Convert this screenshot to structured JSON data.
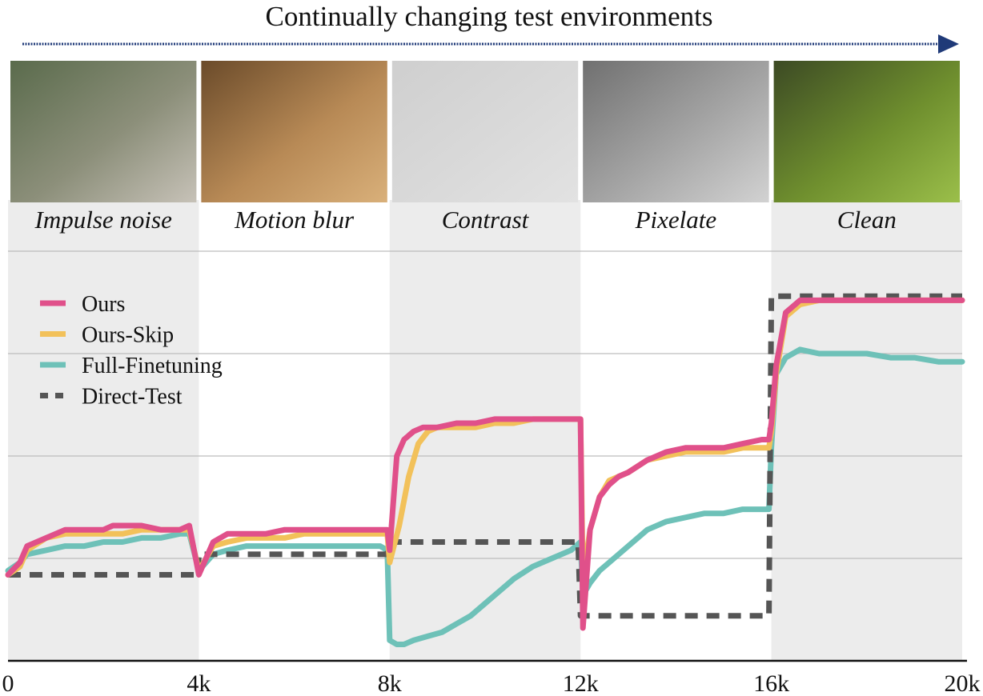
{
  "header": {
    "title": "Continually changing test environments"
  },
  "colors": {
    "ours": "#e0508a",
    "ours_skip": "#f2c15a",
    "full_finetuning": "#6ec1b8",
    "direct_test": "#555555",
    "shaded_band": "#ececec",
    "arrow": "#1f3a78"
  },
  "chart_data": {
    "type": "line",
    "title": "Continually changing test environments",
    "x_tick_labels": [
      "0",
      "4k",
      "8k",
      "12k",
      "16k",
      "20k"
    ],
    "xlim": [
      0,
      20000
    ],
    "ylim": [
      0,
      100
    ],
    "y_grid": [
      25,
      50,
      75,
      100
    ],
    "grid": true,
    "legend_position": "top-left",
    "domains": [
      {
        "label": "Impulse noise",
        "start": 0,
        "end": 4000,
        "shaded": true,
        "icon": "impulse-noise-thumbnail"
      },
      {
        "label": "Motion blur",
        "start": 4000,
        "end": 8000,
        "shaded": false,
        "icon": "motion-blur-thumbnail"
      },
      {
        "label": "Contrast",
        "start": 8000,
        "end": 12000,
        "shaded": true,
        "icon": "contrast-thumbnail"
      },
      {
        "label": "Pixelate",
        "start": 12000,
        "end": 16000,
        "shaded": false,
        "icon": "pixelate-thumbnail"
      },
      {
        "label": "Clean",
        "start": 16000,
        "end": 20000,
        "shaded": true,
        "icon": "clean-thumbnail"
      }
    ],
    "series": [
      {
        "name": "Ours",
        "key": "ours",
        "dashed": false,
        "x": [
          0,
          250,
          400,
          800,
          1200,
          1600,
          2000,
          2200,
          2400,
          2800,
          3200,
          3600,
          3800,
          4000,
          4300,
          4600,
          5000,
          5400,
          5800,
          6200,
          6600,
          7000,
          7400,
          7800,
          7950,
          8000,
          8150,
          8300,
          8500,
          8700,
          9000,
          9400,
          9800,
          10200,
          10600,
          11000,
          11300,
          11600,
          11800,
          12000,
          12050,
          12200,
          12400,
          12600,
          12800,
          13000,
          13400,
          13800,
          14200,
          14600,
          15000,
          15400,
          15800,
          15950,
          16000,
          16100,
          16300,
          16600,
          17000,
          17500,
          18000,
          18500,
          19000,
          19500,
          20000
        ],
        "y": [
          21,
          24,
          28,
          30,
          32,
          32,
          32,
          33,
          33,
          33,
          32,
          32,
          33,
          21,
          29,
          31,
          31,
          31,
          32,
          32,
          32,
          32,
          32,
          32,
          32,
          27,
          50,
          54,
          56,
          57,
          57,
          58,
          58,
          59,
          59,
          59,
          59,
          59,
          59,
          59,
          8,
          32,
          40,
          43,
          45,
          46,
          49,
          51,
          52,
          52,
          52,
          53,
          54,
          54,
          58,
          72,
          85,
          88,
          88,
          88,
          88,
          88,
          88,
          88,
          88
        ]
      },
      {
        "name": "Ours-Skip",
        "key": "ours_skip",
        "dashed": false,
        "x": [
          0,
          250,
          400,
          800,
          1200,
          1600,
          2000,
          2400,
          2800,
          3200,
          3600,
          3800,
          4000,
          4300,
          4600,
          5000,
          5400,
          5800,
          6200,
          6600,
          7000,
          7400,
          7800,
          7950,
          8000,
          8200,
          8400,
          8600,
          8800,
          9000,
          9400,
          9800,
          10200,
          10600,
          11000,
          11400,
          11800,
          12000,
          12050,
          12200,
          12400,
          12600,
          12800,
          13000,
          13400,
          13800,
          14200,
          14600,
          15000,
          15400,
          15800,
          15950,
          16000,
          16100,
          16300,
          16600,
          17000,
          17500,
          18000,
          18500,
          19000,
          19500,
          20000
        ],
        "y": [
          21,
          23,
          27,
          30,
          31,
          31,
          31,
          31,
          32,
          32,
          32,
          32,
          22,
          28,
          29,
          30,
          30,
          30,
          31,
          31,
          31,
          31,
          31,
          31,
          24,
          33,
          45,
          53,
          56,
          57,
          57,
          57,
          58,
          58,
          59,
          59,
          59,
          59,
          20,
          32,
          40,
          44,
          45,
          46,
          49,
          50,
          51,
          51,
          51,
          52,
          52,
          52,
          56,
          70,
          84,
          87,
          88,
          88,
          88,
          88,
          88,
          88,
          88
        ]
      },
      {
        "name": "Full-Finetuning",
        "key": "full_finetuning",
        "dashed": false,
        "x": [
          0,
          250,
          400,
          800,
          1200,
          1600,
          2000,
          2400,
          2800,
          3200,
          3600,
          3800,
          4000,
          4300,
          4600,
          5000,
          5400,
          5800,
          6200,
          6600,
          7000,
          7400,
          7800,
          7950,
          8000,
          8150,
          8300,
          8500,
          8800,
          9100,
          9400,
          9700,
          10000,
          10300,
          10600,
          11000,
          11400,
          11800,
          12000,
          12050,
          12200,
          12400,
          12600,
          12800,
          13000,
          13400,
          13800,
          14200,
          14600,
          15000,
          15400,
          15800,
          15950,
          16000,
          16100,
          16300,
          16600,
          17000,
          17500,
          18000,
          18500,
          19000,
          19500,
          20000
        ],
        "y": [
          22,
          24,
          26,
          27,
          28,
          28,
          29,
          29,
          30,
          30,
          31,
          31,
          22,
          26,
          27,
          28,
          28,
          28,
          28,
          28,
          28,
          28,
          28,
          27,
          5,
          4,
          4,
          5,
          6,
          7,
          9,
          11,
          14,
          17,
          20,
          23,
          25,
          27,
          29,
          16,
          19,
          22,
          24,
          26,
          28,
          32,
          34,
          35,
          36,
          36,
          37,
          37,
          37,
          52,
          70,
          74,
          76,
          75,
          75,
          75,
          74,
          74,
          73,
          73
        ]
      },
      {
        "name": "Direct-Test",
        "key": "direct_test",
        "dashed": true,
        "x": [
          0,
          3980,
          4000,
          4200,
          7950,
          8000,
          8200,
          11950,
          12000,
          12200,
          15950,
          16000,
          16200,
          20000
        ],
        "y": [
          21,
          21,
          26,
          26,
          26,
          29,
          29,
          29,
          11,
          11,
          11,
          89,
          89,
          89
        ]
      }
    ]
  }
}
